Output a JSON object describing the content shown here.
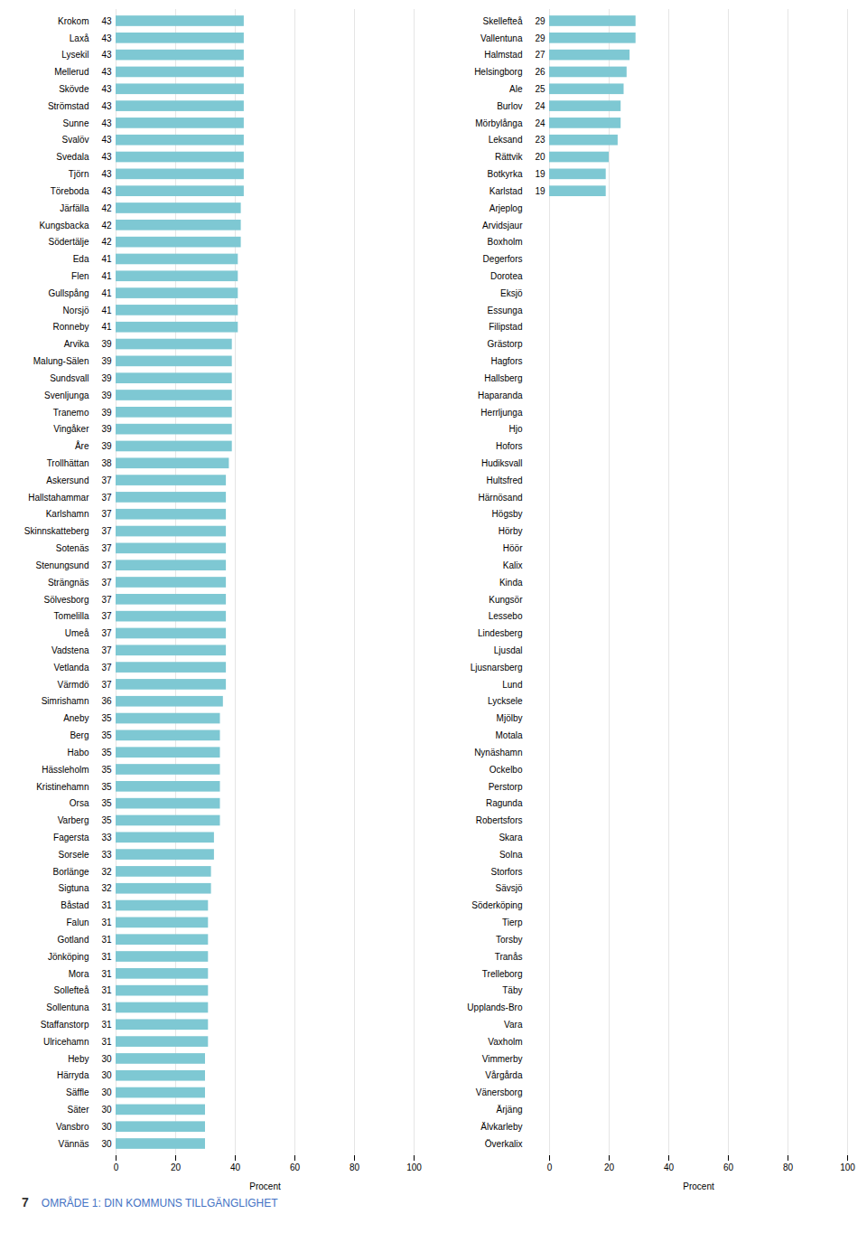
{
  "chart_data": [
    {
      "type": "bar",
      "orientation": "horizontal",
      "xlabel": "Procent",
      "xlim": [
        0,
        100
      ],
      "xticks": [
        0,
        20,
        40,
        60,
        80,
        100
      ],
      "grid": true,
      "color": "#7EC8D3",
      "data_labels": true,
      "annotations": [
        "7",
        "OMRÅDE 1: DIN KOMMUNS TILLGÄNGLIGHET"
      ],
      "categories": [
        "Krokom",
        "Laxå",
        "Lysekil",
        "Mellerud",
        "Skövde",
        "Strömstad",
        "Sunne",
        "Svalöv",
        "Svedala",
        "Tjörn",
        "Töreboda",
        "Järfälla",
        "Kungsbacka",
        "Södertälje",
        "Eda",
        "Flen",
        "Gullspång",
        "Norsjö",
        "Ronneby",
        "Arvika",
        "Malung-Sälen",
        "Sundsvall",
        "Svenljunga",
        "Tranemo",
        "Vingåker",
        "Åre",
        "Trollhättan",
        "Askersund",
        "Hallstahammar",
        "Karlshamn",
        "Skinnskatteberg",
        "Sotenäs",
        "Stenungsund",
        "Strängnäs",
        "Sölvesborg",
        "Tomelilla",
        "Umeå",
        "Vadstena",
        "Vetlanda",
        "Värmdö",
        "Simrishamn",
        "Aneby",
        "Berg",
        "Habo",
        "Hässleholm",
        "Kristinehamn",
        "Orsa",
        "Varberg",
        "Fagersta",
        "Sorsele",
        "Borlänge",
        "Sigtuna",
        "Båstad",
        "Falun",
        "Gotland",
        "Jönköping",
        "Mora",
        "Sollefteå",
        "Sollentuna",
        "Staffanstorp",
        "Ulricehamn",
        "Heby",
        "Härryda",
        "Säffle",
        "Säter",
        "Vansbro",
        "Vännäs"
      ],
      "values": [
        43,
        43,
        43,
        43,
        43,
        43,
        43,
        43,
        43,
        43,
        43,
        42,
        42,
        42,
        41,
        41,
        41,
        41,
        41,
        39,
        39,
        39,
        39,
        39,
        39,
        39,
        38,
        37,
        37,
        37,
        37,
        37,
        37,
        37,
        37,
        37,
        37,
        37,
        37,
        37,
        36,
        35,
        35,
        35,
        35,
        35,
        35,
        35,
        33,
        33,
        32,
        32,
        31,
        31,
        31,
        31,
        31,
        31,
        31,
        31,
        31,
        30,
        30,
        30,
        30,
        30,
        30
      ]
    },
    {
      "type": "bar",
      "orientation": "horizontal",
      "xlabel": "Procent",
      "xlim": [
        0,
        100
      ],
      "xticks": [
        0,
        20,
        40,
        60,
        80,
        100
      ],
      "grid": true,
      "color": "#7EC8D3",
      "data_labels": true,
      "categories": [
        "Skellefteå",
        "Vallentuna",
        "Halmstad",
        "Helsingborg",
        "Ale",
        "Burlov",
        "Mörbylånga",
        "Leksand",
        "Rättvik",
        "Botkyrka",
        "Karlstad",
        "Arjeplog",
        "Arvidsjaur",
        "Boxholm",
        "Degerfors",
        "Dorotea",
        "Eksjö",
        "Essunga",
        "Filipstad",
        "Grästorp",
        "Hagfors",
        "Hallsberg",
        "Haparanda",
        "Herrljunga",
        "Hjo",
        "Hofors",
        "Hudiksvall",
        "Hultsfred",
        "Härnösand",
        "Högsby",
        "Hörby",
        "Höör",
        "Kalix",
        "Kinda",
        "Kungsör",
        "Lessebo",
        "Lindesberg",
        "Ljusdal",
        "Ljusnarsberg",
        "Lund",
        "Lycksele",
        "Mjölby",
        "Motala",
        "Nynäshamn",
        "Ockelbo",
        "Perstorp",
        "Ragunda",
        "Robertsfors",
        "Skara",
        "Solna",
        "Storfors",
        "Sävsjö",
        "Söderköping",
        "Tierp",
        "Torsby",
        "Tranås",
        "Trelleborg",
        "Täby",
        "Upplands-Bro",
        "Vara",
        "Vaxholm",
        "Vimmerby",
        "Vårgårda",
        "Vänersborg",
        "Ärjäng",
        "Älvkarleby",
        "Överkalix"
      ],
      "values": [
        29,
        29,
        27,
        26,
        25,
        24,
        24,
        23,
        20,
        19,
        19,
        0,
        0,
        0,
        0,
        0,
        0,
        0,
        0,
        0,
        0,
        0,
        0,
        0,
        0,
        0,
        0,
        0,
        0,
        0,
        0,
        0,
        0,
        0,
        0,
        0,
        0,
        0,
        0,
        0,
        0,
        0,
        0,
        0,
        0,
        0,
        0,
        0,
        0,
        0,
        0,
        0,
        0,
        0,
        0,
        0,
        0,
        0,
        0,
        0,
        0,
        0,
        0,
        0,
        0,
        0,
        0
      ],
      "value_labels": [
        "29",
        "29",
        "27",
        "26",
        "25",
        "24",
        "24",
        "23",
        "20",
        "19",
        "19",
        null,
        null,
        null,
        null,
        null,
        null,
        null,
        null,
        null,
        null,
        null,
        null,
        null,
        null,
        null,
        null,
        null,
        null,
        null,
        null,
        null,
        null,
        null,
        null,
        null,
        null,
        null,
        null,
        null,
        null,
        null,
        null,
        null,
        null,
        null,
        null,
        null,
        null,
        null,
        null,
        null,
        null,
        null,
        null,
        null,
        null,
        null,
        null,
        null,
        null,
        null,
        null,
        null,
        null,
        null,
        null
      ]
    }
  ]
}
